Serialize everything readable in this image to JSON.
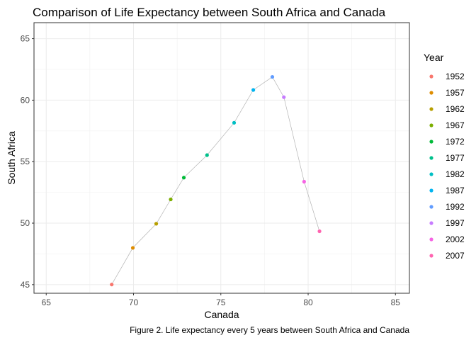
{
  "chart_data": {
    "type": "scatter",
    "title": "Comparison of Life Expectancy between South Africa and Canada",
    "xlabel": "Canada",
    "ylabel": "South Africa",
    "xlim": [
      64.3,
      85.8
    ],
    "ylim": [
      44.3,
      66.3
    ],
    "x_ticks": [
      65,
      70,
      75,
      80,
      85
    ],
    "y_ticks": [
      45,
      50,
      55,
      60,
      65
    ],
    "grid": true,
    "connecting_line": true,
    "legend": {
      "title": "Year",
      "placement": "right"
    },
    "caption": "Figure 2. Life expectancy every 5 years between South Africa and Canada",
    "points": [
      {
        "year": "1952",
        "x": 68.75,
        "y": 45.01,
        "color": "#F8766D"
      },
      {
        "year": "1957",
        "x": 69.96,
        "y": 47.99,
        "color": "#DE8C00"
      },
      {
        "year": "1962",
        "x": 71.3,
        "y": 49.95,
        "color": "#B79F00"
      },
      {
        "year": "1967",
        "x": 72.13,
        "y": 51.93,
        "color": "#7CAE00"
      },
      {
        "year": "1972",
        "x": 72.88,
        "y": 53.7,
        "color": "#00BA38"
      },
      {
        "year": "1977",
        "x": 74.21,
        "y": 55.53,
        "color": "#00C08B"
      },
      {
        "year": "1982",
        "x": 75.76,
        "y": 58.16,
        "color": "#00BFC4"
      },
      {
        "year": "1987",
        "x": 76.86,
        "y": 60.83,
        "color": "#00B4F0"
      },
      {
        "year": "1992",
        "x": 77.95,
        "y": 61.89,
        "color": "#619CFF"
      },
      {
        "year": "1997",
        "x": 78.61,
        "y": 60.24,
        "color": "#C77CFF"
      },
      {
        "year": "2002",
        "x": 79.77,
        "y": 53.37,
        "color": "#F564E3"
      },
      {
        "year": "2007",
        "x": 80.65,
        "y": 49.34,
        "color": "#FF64B0"
      }
    ]
  }
}
